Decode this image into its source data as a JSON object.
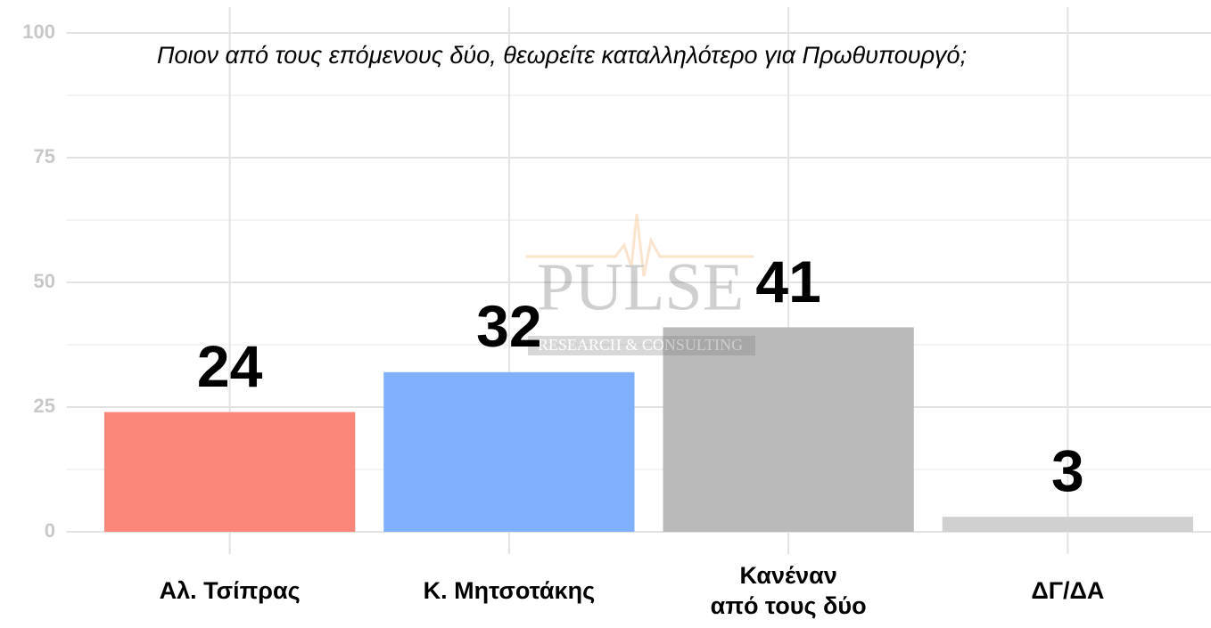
{
  "chart_data": {
    "type": "bar",
    "title": "Ποιον από τους επόμενους δύο, θεωρείτε καταλληλότερο για Πρωθυπουργό;",
    "categories": [
      "Αλ. Τσίπρας",
      "Κ. Μητσοτάκης",
      "Κανέναν\nαπό τους δύο",
      "ΔΓ/ΔΑ"
    ],
    "values": [
      24,
      32,
      41,
      3
    ],
    "colors": [
      "#fb877b",
      "#80b0fd",
      "#bababa",
      "#d0d0d0"
    ],
    "ylim": [
      0,
      100
    ],
    "yticks": [
      0,
      25,
      50,
      75,
      100
    ],
    "grid": true,
    "watermark": [
      "PULSE",
      "RESEARCH & CONSULTING"
    ]
  }
}
